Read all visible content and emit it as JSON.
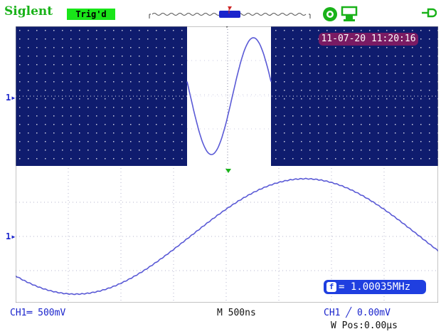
{
  "header": {
    "brand": "Siglent",
    "trigger_status": "Trig'd"
  },
  "timestamp": "11-07-20 11:20:16",
  "frequency_readout": {
    "icon": "frequency-icon",
    "text": "= 1.00035MHz"
  },
  "channel_markers": {
    "upper": "1",
    "lower": "1"
  },
  "footer": {
    "ch1_scale": "CH1═ 500mV",
    "timebase": "M 500ns",
    "trigger_level": "CH1 ╱ 0.00mV",
    "window_position": "W Pos:0.00μs"
  },
  "colors": {
    "brand": "#19b219",
    "trig_badge": "#19e519",
    "screen_dark": "#0f1c6e",
    "trace": "#5a5ad6",
    "timestamp_bg": "#7a1b63",
    "freq_bg": "#1f3fe0"
  },
  "chart_data": {
    "type": "line",
    "series": [
      {
        "values": [
          0,
          1,
          0,
          -1,
          0
        ]
      }
    ],
    "x_range_upper": [
      -2.5,
      2.5
    ],
    "zoom_window_fraction": [
      0.41,
      0.6
    ]
  }
}
